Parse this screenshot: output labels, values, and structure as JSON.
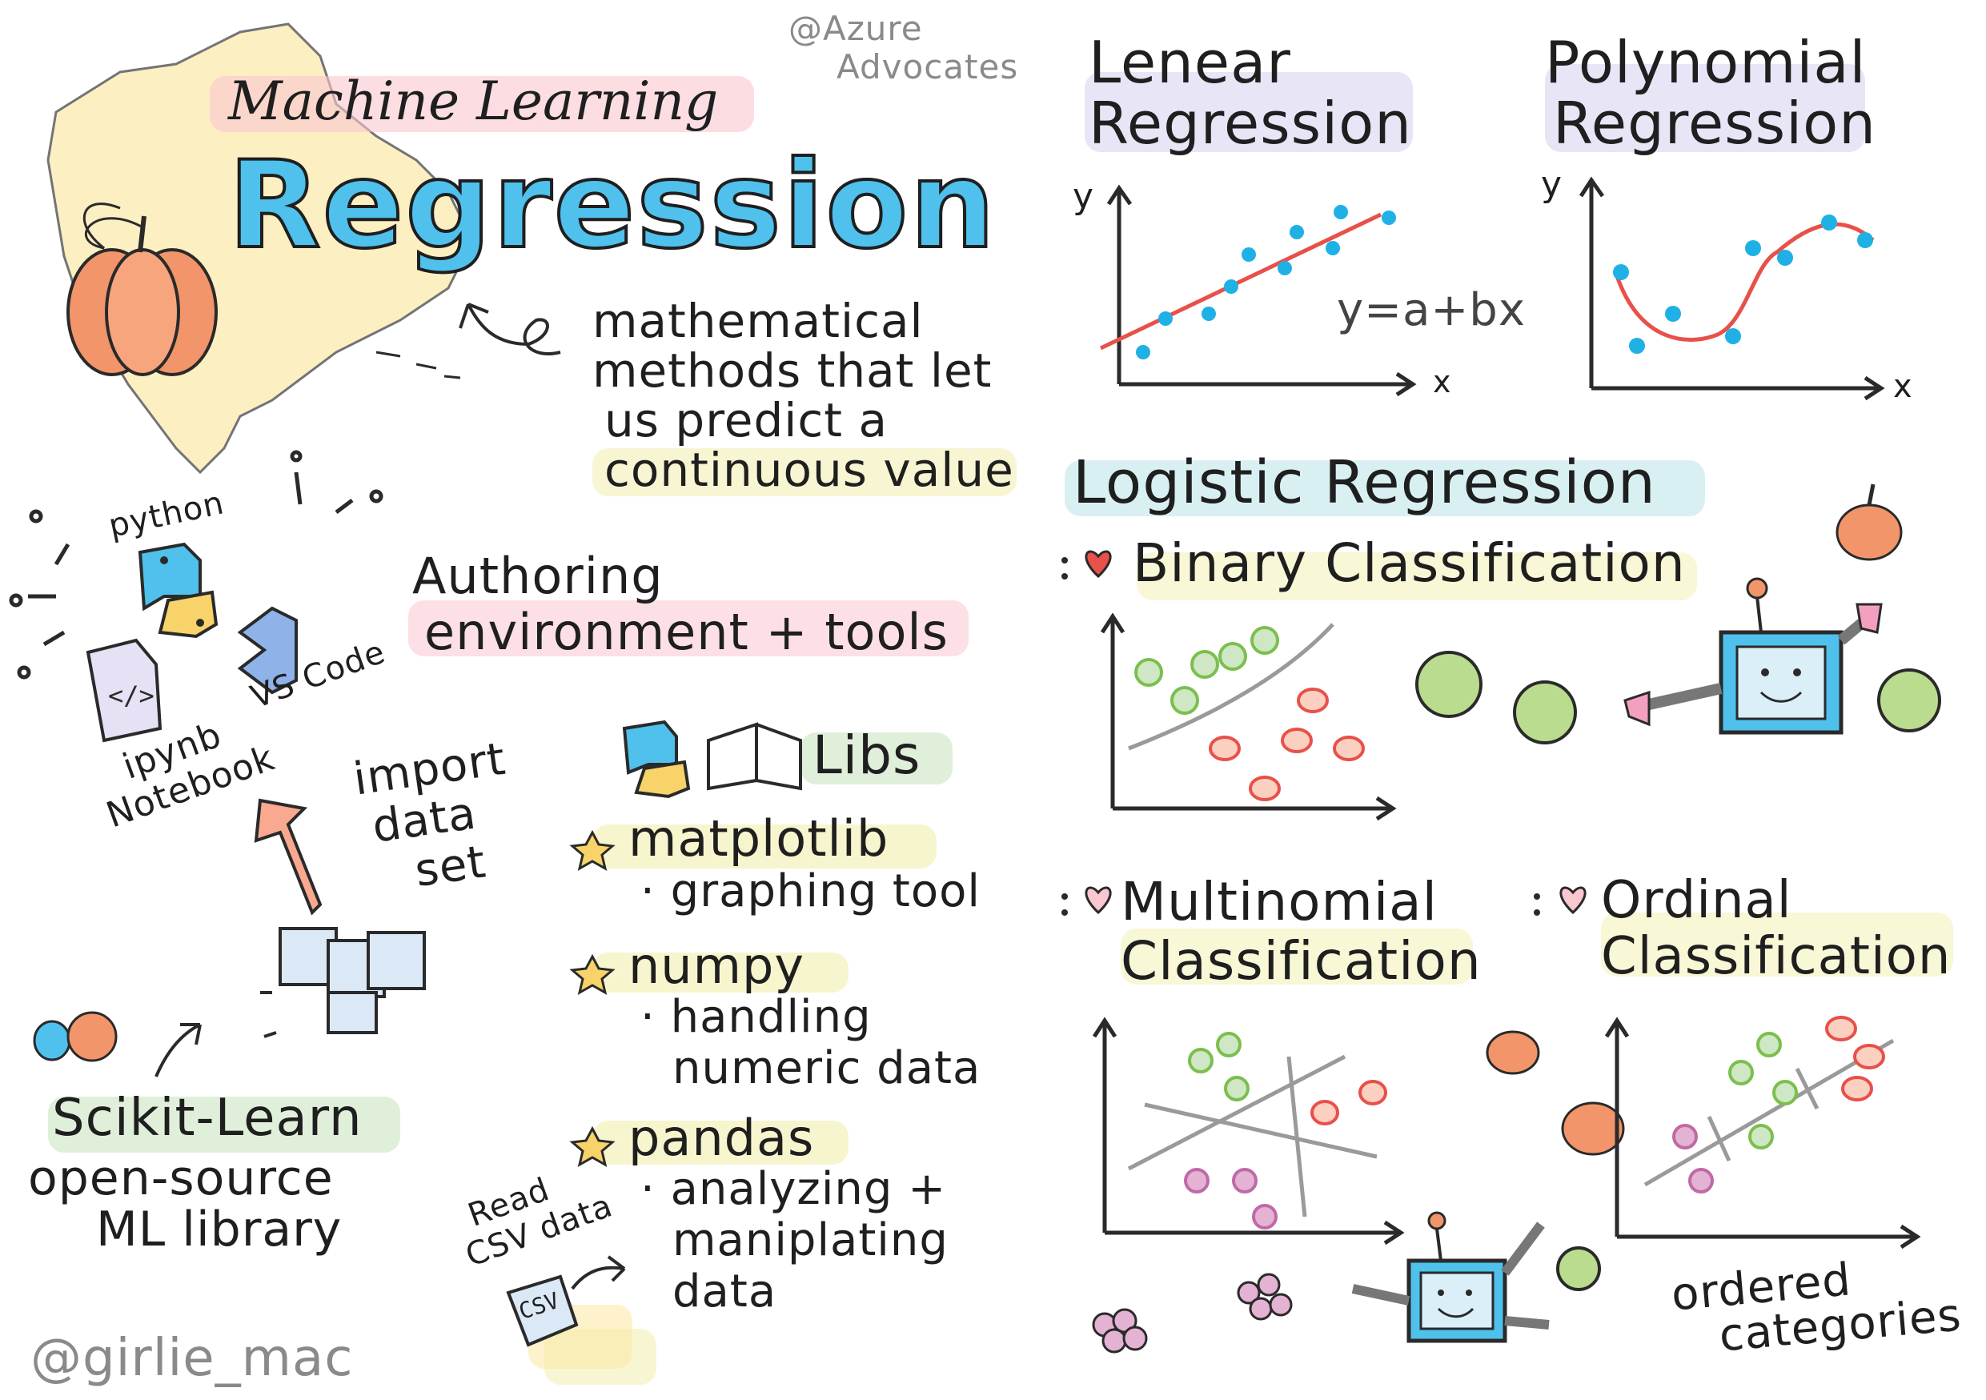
{
  "colors": {
    "regression_blue": "#4fc1ec",
    "pumpkin_orange": "#f2956a",
    "highlight_pink": "#f9c7cf",
    "highlight_purple": "#d9d4f0",
    "highlight_green": "#cfe7c4",
    "highlight_yellow": "#f3f0b4",
    "highlight_teal": "#bfe6ea",
    "data_point_blue": "#1fb1e6",
    "fit_line_red": "#e8504a",
    "apple_green": "#9bd06b",
    "grape_purple": "#c06aa5",
    "map_yellow": "#fbe7a3"
  },
  "credits": {
    "azure": [
      "@Azure",
      "Advocates"
    ],
    "author": "@girlie_mac"
  },
  "header": {
    "subtitle": "Machine Learning",
    "title": "Regression",
    "definition": [
      "mathematical",
      "methods that let",
      "us predict a",
      "continuous value"
    ]
  },
  "tools": {
    "python_label": "python",
    "vscode_label": "VS Code",
    "notebook_label": [
      "ipynb",
      "Notebook"
    ],
    "import_label": [
      "import",
      "data",
      "set"
    ],
    "authoring_title": [
      "Authoring",
      "environment + tools"
    ],
    "sklearn_title": "Scikit-Learn",
    "sklearn_desc": [
      "open-source",
      "ML library"
    ]
  },
  "libs": {
    "title": "Libs",
    "items": [
      {
        "name": "matplotlib",
        "desc": [
          "graphing tool"
        ]
      },
      {
        "name": "numpy",
        "desc": [
          "handling",
          "numeric data"
        ]
      },
      {
        "name": "pandas",
        "desc": [
          "analyzing +",
          "maniplating",
          "data"
        ]
      }
    ],
    "csv_label": [
      "Read",
      "CSV data"
    ],
    "csv_file": "CSV"
  },
  "linear": {
    "title": [
      "Lenear",
      "Regression"
    ],
    "y_axis": "y",
    "x_axis": "x",
    "equation": "y=a+bx"
  },
  "polynomial": {
    "title": [
      "Polynomial",
      "Regression"
    ],
    "y_axis": "y",
    "x_axis": "x"
  },
  "logistic": {
    "title": "Logistic Regression",
    "binary": "Binary Classification",
    "multinomial": [
      "Multinomial",
      "Classification"
    ],
    "ordinal": [
      "Ordinal",
      "Classification"
    ],
    "ordered": [
      "ordered",
      "categories"
    ]
  }
}
